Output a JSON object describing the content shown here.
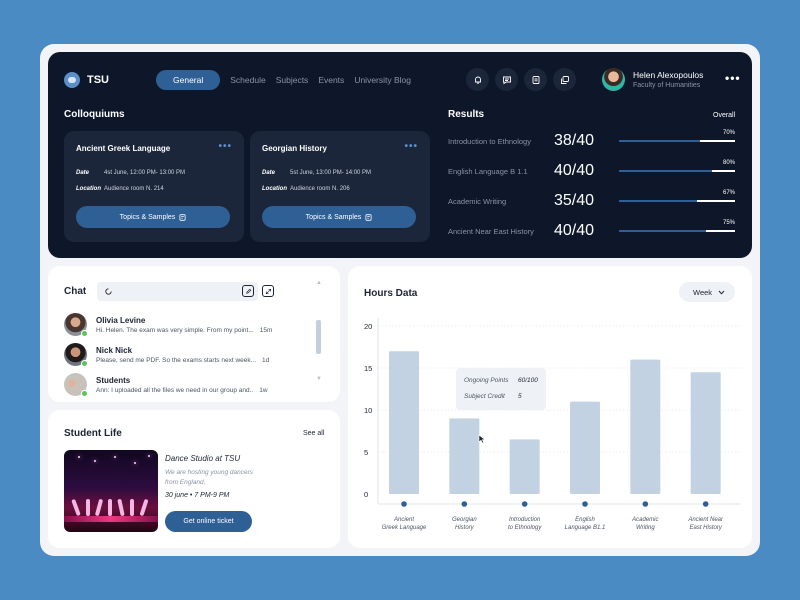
{
  "app": {
    "name": "TSU"
  },
  "nav": {
    "items": [
      {
        "label": "General",
        "active": true
      },
      {
        "label": "Schedule",
        "active": false
      },
      {
        "label": "Subjects",
        "active": false
      },
      {
        "label": "Events",
        "active": false
      },
      {
        "label": "University Blog",
        "active": false
      }
    ]
  },
  "header_icons": [
    "bell-icon",
    "chat-bubble-icon",
    "notes-icon",
    "messages-icon"
  ],
  "profile": {
    "name": "Helen Alexopoulos",
    "faculty": "Faculty of Humanities"
  },
  "colloquiums": {
    "title": "Colloquiums",
    "cards": [
      {
        "title": "Ancient Greek Language",
        "date_label": "Date",
        "date": "4st June, 12:00 PM- 13:00 PM",
        "location_label": "Location",
        "location": "Audience room N. 214",
        "button": "Topics & Samples"
      },
      {
        "title": "Georgian History",
        "date_label": "Date",
        "date": "5st June, 13:00 PM- 14:00 PM",
        "location_label": "Location",
        "location": "Audience room N. 206",
        "button": "Topics & Samples"
      }
    ]
  },
  "results": {
    "title": "Results",
    "filter": "Overall",
    "rows": [
      {
        "subject": "Introduction to Ethnology",
        "score": "38/40",
        "percent_label": "70%",
        "percent": 70
      },
      {
        "subject": "English Language B 1.1",
        "score": "40/40",
        "percent_label": "80%",
        "percent": 80
      },
      {
        "subject": "Academic Writing",
        "score": "35/40",
        "percent_label": "67%",
        "percent": 67
      },
      {
        "subject": "Ancient Near East History",
        "score": "40/40",
        "percent_label": "75%",
        "percent": 75
      }
    ]
  },
  "chat": {
    "title": "Chat",
    "items": [
      {
        "name": "Olivia Levine",
        "message": "Hi. Helen. The exam was very simple. From my point...",
        "time": "15m"
      },
      {
        "name": "Nick Nick",
        "message": "Please, send me PDF. So the exams starts next week...",
        "time": "1d"
      },
      {
        "name": "Students",
        "message": "Ann: I uploaded all the files we need in our group and..",
        "time": "1w"
      }
    ]
  },
  "student_life": {
    "title": "Student Life",
    "see_all": "See all",
    "event_title": "Dance Studio at TSU",
    "event_desc": "We are hosting young dancers from England.",
    "event_when": "30 june • 7 PM-9 PM",
    "button": "Get online ticket"
  },
  "hours": {
    "title": "Hours Data",
    "period": "Week",
    "tooltip": {
      "k1": "Ongoing Points",
      "v1": "60/100",
      "k2": "Subject Credit",
      "v2": "5"
    }
  },
  "chart_data": {
    "type": "bar",
    "title": "Hours Data",
    "categories": [
      "Ancient Greek Language",
      "Georgian History",
      "Introduction to Ethnology",
      "English Language B1.1",
      "Academic Writing",
      "Ancient Near East History"
    ],
    "category_lines": [
      [
        "Ancient",
        "Greek Language"
      ],
      [
        "Georgian",
        "History"
      ],
      [
        "Introduction",
        "to Ethnology"
      ],
      [
        "English",
        "Language B1.1"
      ],
      [
        "Academic",
        "Writing"
      ],
      [
        "Ancient Near",
        "East History"
      ]
    ],
    "values": [
      17,
      9,
      6.5,
      11,
      16,
      14.5
    ],
    "yticks": [
      0,
      5,
      10,
      15,
      20
    ],
    "ylim": [
      0,
      20
    ],
    "xlabel": "",
    "ylabel": "",
    "grid": true,
    "colors": {
      "bar": "#c3d2e3",
      "dot": "#2e5f95",
      "grid": "#d9dee6"
    }
  },
  "colors": {
    "accent": "#2e5f95",
    "dark_panel": "#0e1729",
    "background": "#4a8bc4"
  }
}
